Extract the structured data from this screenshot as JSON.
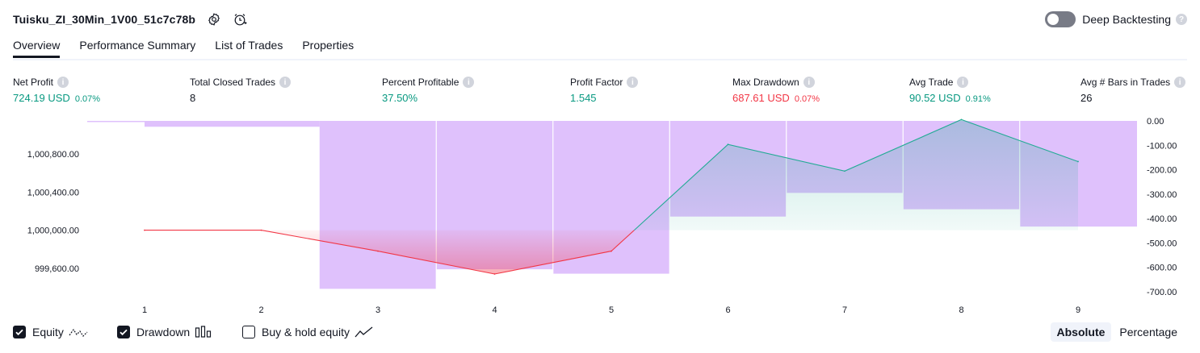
{
  "header": {
    "title": "Tuisku_ZI_30Min_1V00_51c7c78b",
    "settings_icon": "settings-icon",
    "alert_icon": "alert-clock-icon",
    "deep_backtesting_label": "Deep Backtesting",
    "deep_backtesting_on": false,
    "help_icon": "question-icon"
  },
  "tabs": [
    {
      "label": "Overview",
      "active": true
    },
    {
      "label": "Performance Summary",
      "active": false
    },
    {
      "label": "List of Trades",
      "active": false
    },
    {
      "label": "Properties",
      "active": false
    }
  ],
  "stats": [
    {
      "label": "Net Profit",
      "value": "724.19 USD",
      "pct": "0.07%",
      "color": "#089981"
    },
    {
      "label": "Total Closed Trades",
      "value": "8",
      "pct": "",
      "color": "#131722"
    },
    {
      "label": "Percent Profitable",
      "value": "37.50%",
      "pct": "",
      "color": "#089981"
    },
    {
      "label": "Profit Factor",
      "value": "1.545",
      "pct": "",
      "color": "#089981"
    },
    {
      "label": "Max Drawdown",
      "value": "687.61 USD",
      "pct": "0.07%",
      "color": "#f23645"
    },
    {
      "label": "Avg Trade",
      "value": "90.52 USD",
      "pct": "0.91%",
      "color": "#089981"
    },
    {
      "label": "Avg # Bars in Trades",
      "value": "26",
      "pct": "",
      "color": "#131722"
    }
  ],
  "chart_data": {
    "type": "line",
    "x": [
      1,
      2,
      3,
      4,
      5,
      6,
      7,
      8,
      9
    ],
    "left_axis": {
      "ticks": [
        1000800,
        1000400,
        1000000,
        999600
      ],
      "tick_labels": [
        "1,000,800.00",
        "1,000,400.00",
        "1,000,000.00",
        "999,600.00"
      ],
      "ylim": [
        999440,
        1001160
      ]
    },
    "right_axis": {
      "ticks": [
        0,
        -100,
        -200,
        -300,
        -400,
        -500,
        -600,
        -700
      ],
      "tick_labels": [
        "0.00",
        "-100.00",
        "-200.00",
        "-300.00",
        "-400.00",
        "-500.00",
        "-600.00",
        "-700.00"
      ],
      "ylim": [
        -700,
        0
      ]
    },
    "series": [
      {
        "name": "Equity",
        "axis": "left",
        "values": [
          1000000,
          1000000,
          999780,
          999540,
          999780,
          1000900,
          1000620,
          1001160,
          1000720
        ]
      },
      {
        "name": "Drawdown",
        "axis": "right",
        "type": "bar",
        "bars": [
          {
            "from": 0.0,
            "to": 1.0,
            "value": 0
          },
          {
            "from": 1.0,
            "to": 2.5,
            "value": -24
          },
          {
            "from": 2.5,
            "to": 3.5,
            "value": -688
          },
          {
            "from": 3.5,
            "to": 4.5,
            "value": -608
          },
          {
            "from": 4.5,
            "to": 5.5,
            "value": -626
          },
          {
            "from": 5.5,
            "to": 6.5,
            "value": -392
          },
          {
            "from": 6.5,
            "to": 7.5,
            "value": -295
          },
          {
            "from": 7.5,
            "to": 8.5,
            "value": -362
          },
          {
            "from": 8.5,
            "to": 9.5,
            "value": -433
          }
        ]
      }
    ],
    "colors": {
      "equity_up": "#22ab94",
      "equity_down": "#f23645",
      "drawdown": "#cb9bfa",
      "axis_text": "#131722"
    }
  },
  "legend": {
    "equity": {
      "label": "Equity",
      "checked": true,
      "icon": "equity-line-icon"
    },
    "drawdown": {
      "label": "Drawdown",
      "checked": true,
      "icon": "drawdown-bars-icon"
    },
    "buyhold": {
      "label": "Buy & hold equity",
      "checked": false,
      "icon": "buyhold-line-icon"
    }
  },
  "modes": [
    {
      "label": "Absolute",
      "active": true
    },
    {
      "label": "Percentage",
      "active": false
    }
  ]
}
